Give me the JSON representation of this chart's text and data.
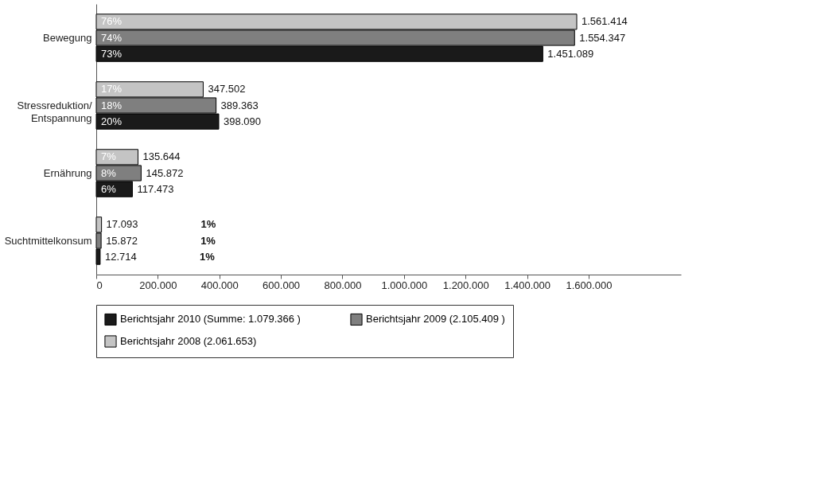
{
  "chart_data": {
    "type": "bar",
    "orientation": "horizontal",
    "categories": [
      "Bewegung",
      "Stressreduktion/ Entspannung",
      "Ernährung",
      "Suchtmittelkonsum"
    ],
    "series": [
      {
        "name": "Berichtsjahr 2010 (Summe: 1.079.366 )",
        "color": "#1a1a1a",
        "values": [
          1451089,
          398090,
          117473,
          12714
        ],
        "value_labels": [
          "1.451.089",
          "398.090",
          "117.473",
          "12.714"
        ]
      },
      {
        "name": "Berichtsjahr 2009 (2.105.409 )",
        "color": "#7f7f7f",
        "values": [
          1554347,
          389363,
          145872,
          15872
        ],
        "value_labels": [
          "1.554.347",
          "389.363",
          "145.872",
          "15.872"
        ]
      },
      {
        "name": "Berichtsjahr 2008 (2.061.653)",
        "color": "#c4c4c4",
        "values": [
          1561414,
          347502,
          135644,
          17093
        ],
        "value_labels": [
          "1.561.414",
          "347.502",
          "135.644",
          "17.093"
        ]
      }
    ],
    "annotations": [
      "73%",
      "20%",
      "6%",
      "1%",
      "74%",
      "18%",
      "8%",
      "1%",
      "76%",
      "17%",
      "7%",
      "1%"
    ],
    "xlim": [
      0,
      1900000
    ],
    "xticks": [
      0,
      {
        "value": 200000,
        "label": "200.000"
      },
      {
        "value": 400000,
        "label": "400.000"
      },
      {
        "value": 600000,
        "label": "600.000"
      },
      {
        "value": 800000,
        "label": "800.000"
      },
      {
        "value": 1000000,
        "label": "1.000.000"
      },
      {
        "value": 1200000,
        "label": "1.200.000"
      },
      {
        "value": 1400000,
        "label": "1.400.000"
      },
      {
        "value": 1600000,
        "label": "1.600.000"
      }
    ],
    "grid": false,
    "legend": "bottom"
  }
}
